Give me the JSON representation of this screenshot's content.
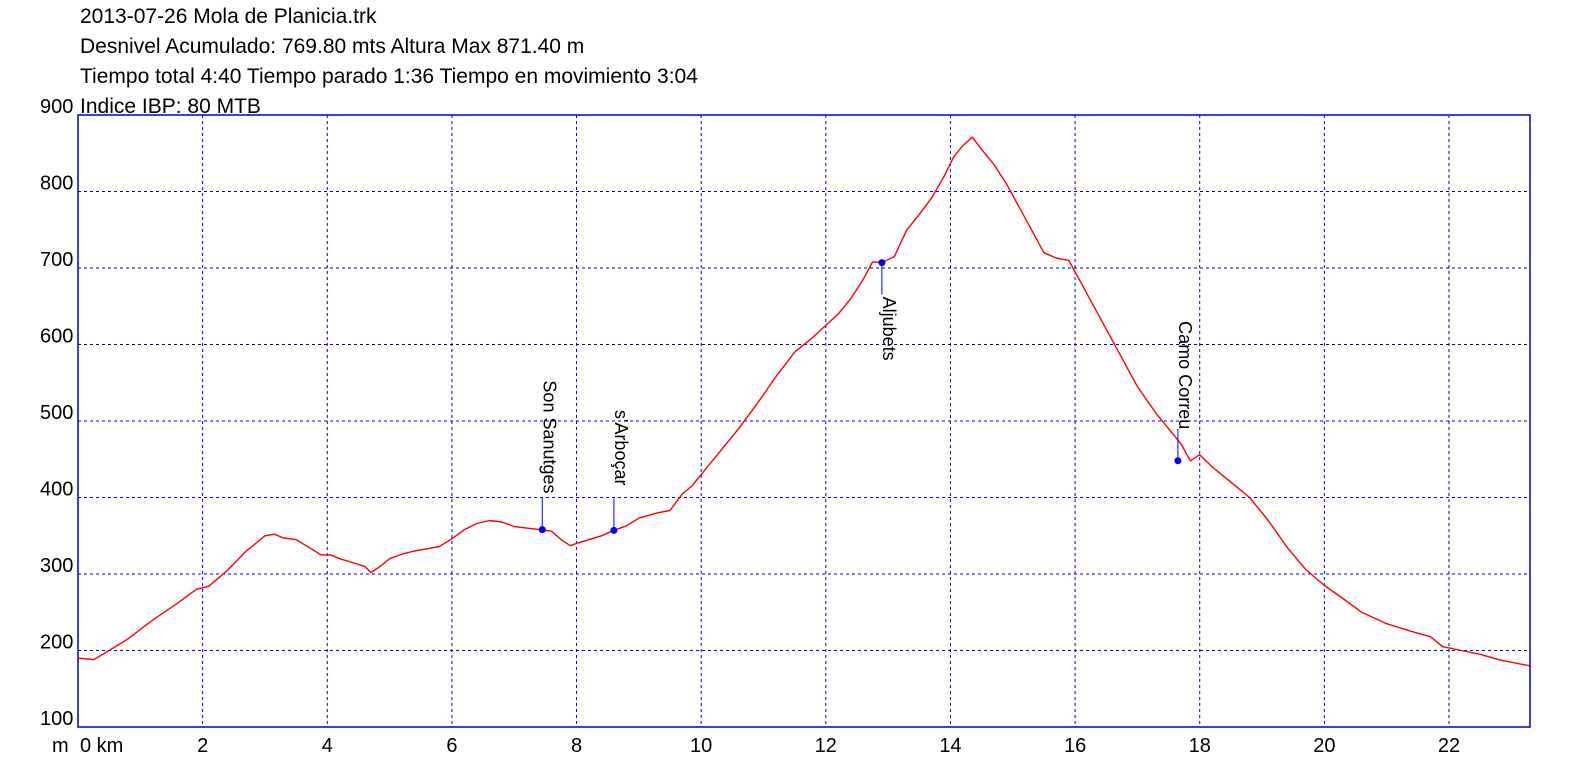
{
  "header": {
    "title": "2013-07-26 Mola de Planicia.trk",
    "line2": "Desnivel Acumulado: 769.80 mts  Altura Max 871.40 m",
    "line3": "Tiempo total 4:40 Tiempo parado 1:36 Tiempo en movimiento 3:04",
    "line4": "Indice IBP: 80 MTB"
  },
  "chart_data": {
    "type": "line",
    "xlabel": "km",
    "ylabel": "m",
    "xlim": [
      0,
      23.3
    ],
    "ylim": [
      100,
      900
    ],
    "xticks": [
      0,
      2,
      4,
      6,
      8,
      10,
      12,
      14,
      16,
      18,
      20,
      22
    ],
    "yticks": [
      100,
      200,
      300,
      400,
      500,
      600,
      700,
      800,
      900
    ],
    "grid": true,
    "colors": {
      "line": "#ff0000",
      "grid": "#0000cc",
      "frame": "#0000cc",
      "waypoint": "#0000ff"
    },
    "series": [
      {
        "x": [
          0,
          0.25,
          0.5,
          0.8,
          1.2,
          1.6,
          1.9,
          2.1,
          2.4,
          2.7,
          3.0,
          3.15,
          3.3,
          3.5,
          3.7,
          3.9,
          4.05,
          4.2,
          4.4,
          4.6,
          4.7,
          4.85,
          5.0,
          5.2,
          5.4,
          5.6,
          5.8,
          6.0,
          6.2,
          6.4,
          6.6,
          6.8,
          7.0,
          7.2,
          7.4,
          7.6,
          7.75,
          7.9,
          8.0,
          8.2,
          8.4,
          8.6,
          8.8,
          9.0,
          9.3,
          9.5,
          9.7,
          9.85,
          10.0,
          10.3,
          10.6,
          10.9,
          11.2,
          11.5,
          11.8,
          12.0,
          12.2,
          12.4,
          12.6,
          12.75,
          12.9,
          13.1,
          13.3,
          13.5,
          13.7,
          13.9,
          14.05,
          14.2,
          14.35,
          14.5,
          14.7,
          14.9,
          15.1,
          15.3,
          15.5,
          15.7,
          15.9,
          16.1,
          16.4,
          16.7,
          17.0,
          17.3,
          17.5,
          17.7,
          17.85,
          18.0,
          18.2,
          18.5,
          18.8,
          19.1,
          19.4,
          19.7,
          20.0,
          20.3,
          20.6,
          21.0,
          21.4,
          21.7,
          21.9,
          22.2,
          22.5,
          22.8,
          23.1,
          23.3
        ],
        "y": [
          190,
          188,
          200,
          215,
          240,
          262,
          280,
          284,
          305,
          330,
          350,
          352,
          347,
          345,
          335,
          325,
          325,
          320,
          315,
          310,
          302,
          310,
          320,
          326,
          330,
          333,
          336,
          346,
          358,
          366,
          370,
          368,
          362,
          360,
          358,
          356,
          345,
          337,
          340,
          345,
          350,
          357,
          363,
          373,
          380,
          383,
          405,
          415,
          430,
          460,
          490,
          523,
          558,
          590,
          610,
          625,
          640,
          660,
          685,
          708,
          707,
          715,
          750,
          770,
          792,
          820,
          845,
          860,
          871,
          855,
          835,
          810,
          780,
          750,
          720,
          713,
          710,
          680,
          635,
          590,
          545,
          510,
          490,
          470,
          448,
          456,
          440,
          420,
          400,
          370,
          335,
          306,
          285,
          268,
          250,
          235,
          225,
          218,
          205,
          200,
          195,
          188,
          183,
          180
        ]
      }
    ],
    "waypoints": [
      {
        "name": "Son Sanutges",
        "x": 7.45,
        "y": 358
      },
      {
        "name": "s'Arboçar",
        "x": 8.6,
        "y": 357
      },
      {
        "name": "Aljubets",
        "x": 12.9,
        "y": 707
      },
      {
        "name": "Camo Correu",
        "x": 17.65,
        "y": 448
      }
    ]
  }
}
